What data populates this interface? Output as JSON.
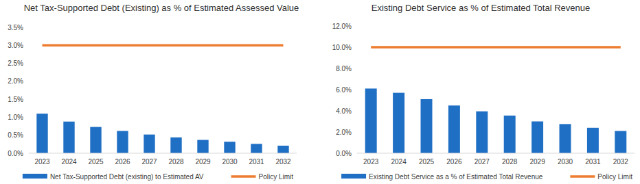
{
  "chart_data": [
    {
      "type": "bar",
      "title": "Net Tax-Supported Debt (Existing) as % of Estimated Assessed Value",
      "categories": [
        "2023",
        "2024",
        "2025",
        "2026",
        "2027",
        "2028",
        "2029",
        "2030",
        "2031",
        "2032"
      ],
      "series": [
        {
          "name": "Net Tax-Supported Debt (existing) to  Estimated AV",
          "type": "bar",
          "color": "#1f6fc5",
          "values": [
            1.1,
            0.88,
            0.73,
            0.62,
            0.52,
            0.44,
            0.37,
            0.32,
            0.26,
            0.21
          ]
        },
        {
          "name": "Policy Limit",
          "type": "line",
          "color": "#ed7d31",
          "values": [
            3.0,
            3.0,
            3.0,
            3.0,
            3.0,
            3.0,
            3.0,
            3.0,
            3.0,
            3.0
          ]
        }
      ],
      "ylim": [
        0,
        3.5
      ],
      "yticks": [
        {
          "value": 0,
          "label": "0.0%"
        },
        {
          "value": 0.5,
          "label": "0.5%"
        },
        {
          "value": 1,
          "label": "1.0%"
        },
        {
          "value": 1.5,
          "label": "1.5%"
        },
        {
          "value": 2,
          "label": "2.0%"
        },
        {
          "value": 2.5,
          "label": "2.5%"
        },
        {
          "value": 3,
          "label": "3.0%"
        },
        {
          "value": 3.5,
          "label": "3.5%"
        }
      ],
      "legend": "bottom",
      "grid": false
    },
    {
      "type": "bar",
      "title": "Existing Debt Service as % of Estimated Total Revenue",
      "categories": [
        "2023",
        "2024",
        "2025",
        "2026",
        "2027",
        "2028",
        "2029",
        "2030",
        "2031",
        "2032"
      ],
      "series": [
        {
          "name": "Existing Debt Service as a % of Estimated Total Revenue",
          "type": "bar",
          "color": "#1f6fc5",
          "values": [
            6.1,
            5.7,
            5.1,
            4.5,
            3.95,
            3.55,
            3.0,
            2.75,
            2.4,
            2.1
          ]
        },
        {
          "name": "Policy Limit",
          "type": "line",
          "color": "#ed7d31",
          "values": [
            10.0,
            10.0,
            10.0,
            10.0,
            10.0,
            10.0,
            10.0,
            10.0,
            10.0,
            10.0
          ]
        }
      ],
      "ylim": [
        0,
        12
      ],
      "yticks": [
        {
          "value": 0,
          "label": "0.0%"
        },
        {
          "value": 2,
          "label": "2.0%"
        },
        {
          "value": 4,
          "label": "4.0%"
        },
        {
          "value": 6,
          "label": "6.0%"
        },
        {
          "value": 8,
          "label": "8.0%"
        },
        {
          "value": 10,
          "label": "10.0%"
        },
        {
          "value": 12,
          "label": "12.0%"
        }
      ],
      "legend": "bottom",
      "grid": false
    }
  ]
}
